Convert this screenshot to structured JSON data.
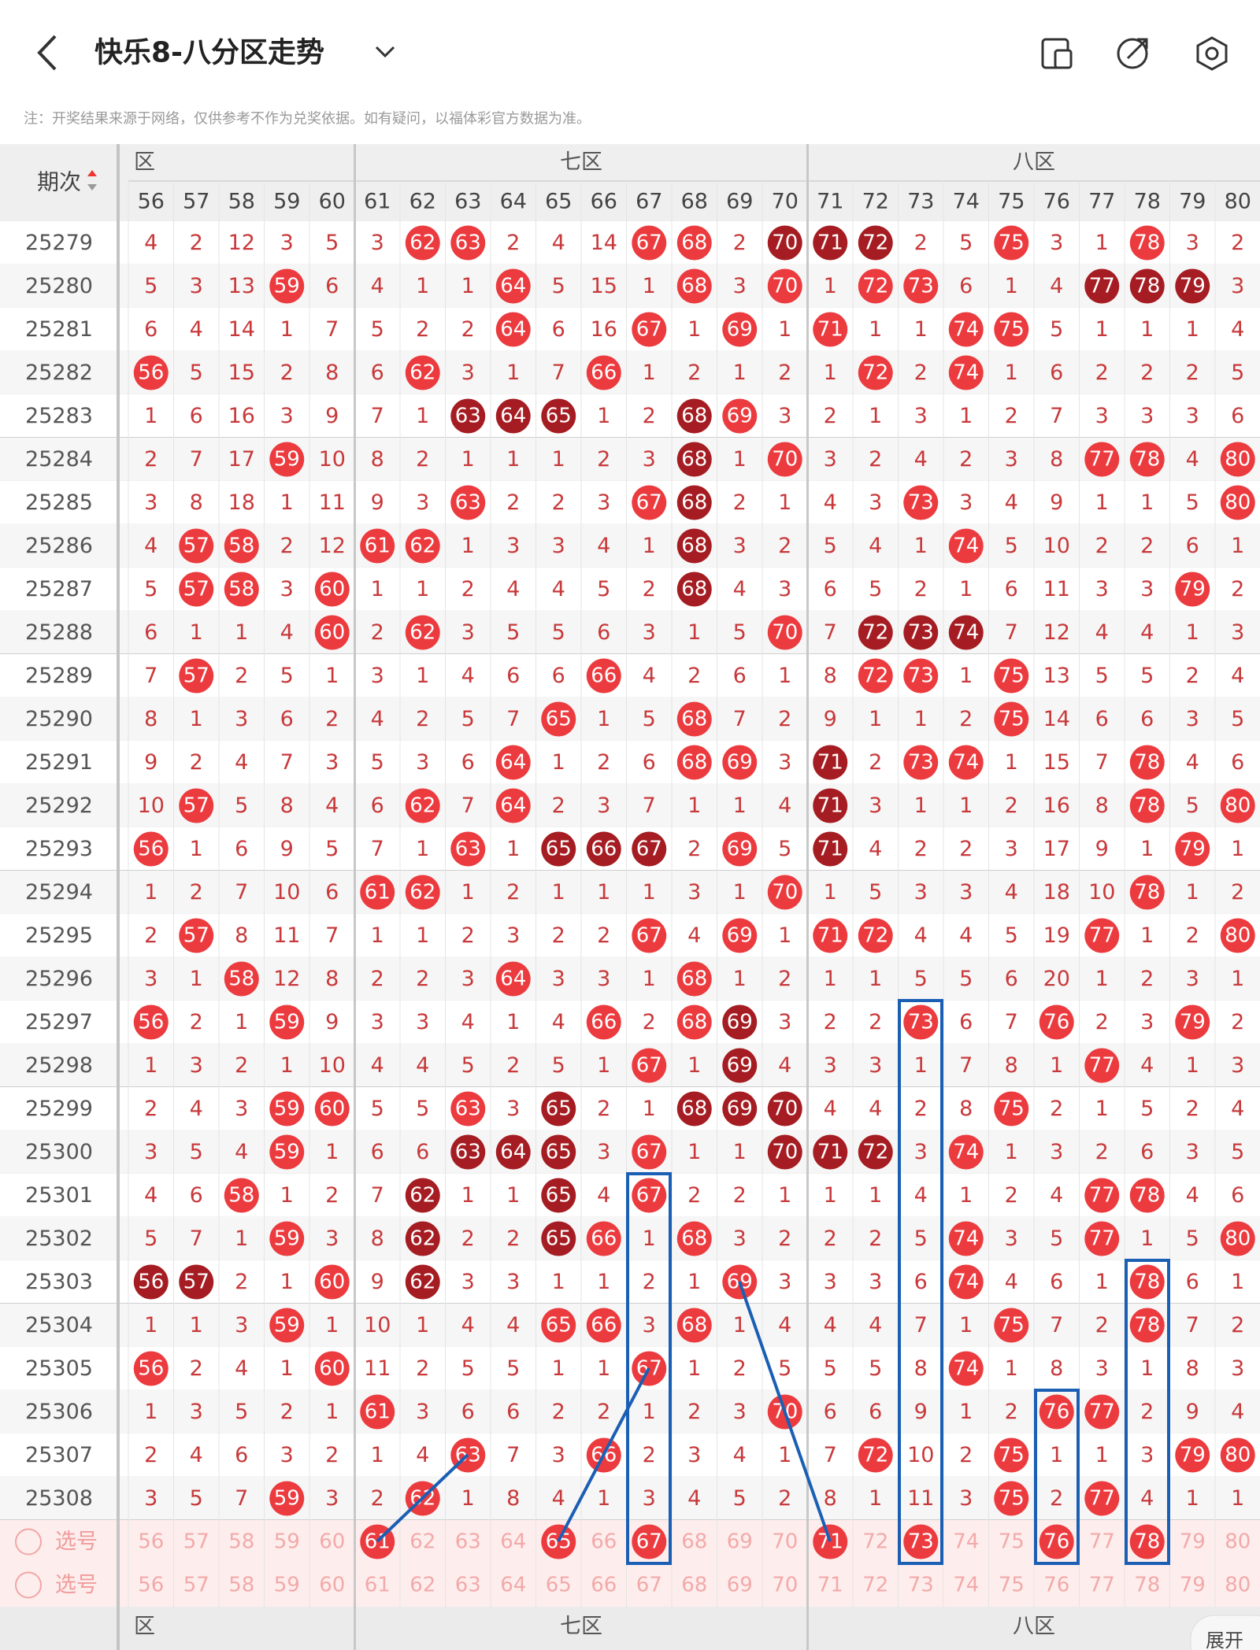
{
  "header": {
    "title": "快乐8-八分区走势",
    "note": "注：开奖结果来源于网络，仅供参考不作为兑奖依据。如有疑问，以福体彩官方数据为准。"
  },
  "table": {
    "corner": "期次",
    "zones": [
      "区",
      "七区",
      "八区"
    ],
    "columns": [
      56,
      57,
      58,
      59,
      60,
      61,
      62,
      63,
      64,
      65,
      66,
      67,
      68,
      69,
      70,
      71,
      72,
      73,
      74,
      75,
      76,
      77,
      78,
      79,
      80
    ],
    "rows": [
      {
        "issue": "25279",
        "values": [
          4,
          2,
          12,
          3,
          5,
          3,
          62,
          63,
          2,
          4,
          14,
          67,
          68,
          2,
          70,
          71,
          72,
          2,
          5,
          75,
          3,
          1,
          78,
          3,
          2
        ],
        "dark": [
          70,
          71,
          72
        ]
      },
      {
        "issue": "25280",
        "values": [
          5,
          3,
          13,
          59,
          6,
          4,
          1,
          1,
          64,
          5,
          15,
          1,
          68,
          3,
          70,
          1,
          72,
          73,
          6,
          1,
          4,
          77,
          78,
          79,
          3
        ],
        "dark": [
          77,
          78,
          79
        ]
      },
      {
        "issue": "25281",
        "values": [
          6,
          4,
          14,
          1,
          7,
          5,
          2,
          2,
          64,
          6,
          16,
          67,
          1,
          69,
          1,
          71,
          1,
          1,
          74,
          75,
          5,
          1,
          1,
          1,
          4
        ],
        "dark": []
      },
      {
        "issue": "25282",
        "values": [
          56,
          5,
          15,
          2,
          8,
          6,
          62,
          3,
          1,
          7,
          66,
          1,
          2,
          1,
          2,
          1,
          72,
          2,
          74,
          1,
          6,
          2,
          2,
          2,
          5
        ],
        "dark": []
      },
      {
        "issue": "25283",
        "values": [
          1,
          6,
          16,
          3,
          9,
          7,
          1,
          63,
          64,
          65,
          1,
          2,
          68,
          69,
          3,
          2,
          1,
          3,
          1,
          2,
          7,
          3,
          3,
          3,
          6
        ],
        "dark": [
          63,
          64,
          65,
          68
        ]
      },
      {
        "issue": "25284",
        "values": [
          2,
          7,
          17,
          59,
          10,
          8,
          2,
          1,
          1,
          1,
          2,
          3,
          68,
          1,
          70,
          3,
          2,
          4,
          2,
          3,
          8,
          77,
          78,
          4,
          80
        ],
        "dark": [
          68
        ]
      },
      {
        "issue": "25285",
        "values": [
          3,
          8,
          18,
          1,
          11,
          9,
          3,
          63,
          2,
          2,
          3,
          67,
          68,
          2,
          1,
          4,
          3,
          73,
          3,
          4,
          9,
          1,
          1,
          5,
          80
        ],
        "dark": [
          68
        ]
      },
      {
        "issue": "25286",
        "values": [
          4,
          57,
          58,
          2,
          12,
          61,
          62,
          1,
          3,
          3,
          4,
          1,
          68,
          3,
          2,
          5,
          4,
          1,
          74,
          5,
          10,
          2,
          2,
          6,
          1
        ],
        "dark": [
          68
        ]
      },
      {
        "issue": "25287",
        "values": [
          5,
          57,
          58,
          3,
          60,
          1,
          1,
          2,
          4,
          4,
          5,
          2,
          68,
          4,
          3,
          6,
          5,
          2,
          1,
          6,
          11,
          3,
          3,
          79,
          2
        ],
        "dark": [
          68
        ]
      },
      {
        "issue": "25288",
        "values": [
          6,
          1,
          1,
          4,
          60,
          2,
          62,
          3,
          5,
          5,
          6,
          3,
          1,
          5,
          70,
          7,
          72,
          73,
          74,
          7,
          12,
          4,
          4,
          1,
          3
        ],
        "dark": [
          72,
          73,
          74
        ]
      },
      {
        "issue": "25289",
        "values": [
          7,
          57,
          2,
          5,
          1,
          3,
          1,
          4,
          6,
          6,
          66,
          4,
          2,
          6,
          1,
          8,
          72,
          73,
          1,
          75,
          13,
          5,
          5,
          2,
          4
        ],
        "dark": []
      },
      {
        "issue": "25290",
        "values": [
          8,
          1,
          3,
          6,
          2,
          4,
          2,
          5,
          7,
          65,
          1,
          5,
          68,
          7,
          2,
          9,
          1,
          1,
          2,
          75,
          14,
          6,
          6,
          3,
          5
        ],
        "dark": []
      },
      {
        "issue": "25291",
        "values": [
          9,
          2,
          4,
          7,
          3,
          5,
          3,
          6,
          64,
          1,
          2,
          6,
          68,
          69,
          3,
          71,
          2,
          73,
          74,
          1,
          15,
          7,
          78,
          4,
          6
        ],
        "dark": [
          71
        ]
      },
      {
        "issue": "25292",
        "values": [
          10,
          57,
          5,
          8,
          4,
          6,
          62,
          7,
          64,
          2,
          3,
          7,
          1,
          1,
          4,
          71,
          3,
          1,
          1,
          2,
          16,
          8,
          78,
          5,
          80
        ],
        "dark": [
          71
        ]
      },
      {
        "issue": "25293",
        "values": [
          56,
          1,
          6,
          9,
          5,
          7,
          1,
          63,
          1,
          65,
          66,
          67,
          2,
          69,
          5,
          71,
          4,
          2,
          2,
          3,
          17,
          9,
          1,
          79,
          1
        ],
        "dark": [
          65,
          66,
          67,
          71
        ]
      },
      {
        "issue": "25294",
        "values": [
          1,
          2,
          7,
          10,
          6,
          61,
          62,
          1,
          2,
          1,
          1,
          1,
          3,
          1,
          70,
          1,
          5,
          3,
          3,
          4,
          18,
          10,
          78,
          1,
          2
        ],
        "dark": []
      },
      {
        "issue": "25295",
        "values": [
          2,
          57,
          8,
          11,
          7,
          1,
          1,
          2,
          3,
          2,
          2,
          67,
          4,
          69,
          1,
          71,
          72,
          4,
          4,
          5,
          19,
          77,
          1,
          2,
          80
        ],
        "dark": []
      },
      {
        "issue": "25296",
        "values": [
          3,
          1,
          58,
          12,
          8,
          2,
          2,
          3,
          64,
          3,
          3,
          1,
          68,
          1,
          2,
          1,
          1,
          5,
          5,
          6,
          20,
          1,
          2,
          3,
          1
        ],
        "dark": []
      },
      {
        "issue": "25297",
        "values": [
          56,
          2,
          1,
          59,
          9,
          3,
          3,
          4,
          1,
          4,
          66,
          2,
          68,
          69,
          3,
          2,
          2,
          73,
          6,
          7,
          76,
          2,
          3,
          79,
          2
        ],
        "dark": [
          69
        ]
      },
      {
        "issue": "25298",
        "values": [
          1,
          3,
          2,
          1,
          10,
          4,
          4,
          5,
          2,
          5,
          1,
          67,
          1,
          69,
          4,
          3,
          3,
          1,
          7,
          8,
          1,
          77,
          4,
          1,
          3
        ],
        "dark": [
          69
        ]
      },
      {
        "issue": "25299",
        "values": [
          2,
          4,
          3,
          59,
          60,
          5,
          5,
          63,
          3,
          65,
          2,
          1,
          68,
          69,
          70,
          4,
          4,
          2,
          8,
          75,
          2,
          1,
          5,
          2,
          4
        ],
        "dark": [
          65,
          68,
          69,
          70
        ]
      },
      {
        "issue": "25300",
        "values": [
          3,
          5,
          4,
          59,
          1,
          6,
          6,
          63,
          64,
          65,
          3,
          67,
          1,
          1,
          70,
          71,
          72,
          3,
          74,
          1,
          3,
          2,
          6,
          3,
          5
        ],
        "dark": [
          63,
          64,
          65,
          70,
          71,
          72
        ]
      },
      {
        "issue": "25301",
        "values": [
          4,
          6,
          58,
          1,
          2,
          7,
          62,
          1,
          1,
          65,
          4,
          67,
          2,
          2,
          1,
          1,
          1,
          4,
          1,
          2,
          4,
          77,
          78,
          4,
          6
        ],
        "dark": [
          62,
          65
        ]
      },
      {
        "issue": "25302",
        "values": [
          5,
          7,
          1,
          59,
          3,
          8,
          62,
          2,
          2,
          65,
          66,
          1,
          68,
          3,
          2,
          2,
          2,
          5,
          74,
          3,
          5,
          77,
          1,
          5,
          80
        ],
        "dark": [
          62,
          65
        ]
      },
      {
        "issue": "25303",
        "values": [
          56,
          57,
          2,
          1,
          60,
          9,
          62,
          3,
          3,
          1,
          1,
          2,
          1,
          69,
          3,
          3,
          3,
          6,
          74,
          4,
          6,
          1,
          78,
          6,
          1
        ],
        "dark": [
          56,
          57,
          62
        ]
      },
      {
        "issue": "25304",
        "values": [
          1,
          1,
          3,
          59,
          1,
          10,
          1,
          4,
          4,
          65,
          66,
          3,
          68,
          1,
          4,
          4,
          4,
          7,
          1,
          75,
          7,
          2,
          78,
          7,
          2
        ],
        "dark": []
      },
      {
        "issue": "25305",
        "values": [
          56,
          2,
          4,
          1,
          60,
          11,
          2,
          5,
          5,
          1,
          1,
          67,
          1,
          2,
          5,
          5,
          5,
          8,
          74,
          1,
          8,
          3,
          1,
          8,
          3
        ],
        "dark": []
      },
      {
        "issue": "25306",
        "values": [
          1,
          3,
          5,
          2,
          1,
          61,
          3,
          6,
          6,
          2,
          2,
          1,
          2,
          3,
          70,
          6,
          6,
          9,
          1,
          2,
          76,
          77,
          2,
          9,
          4
        ],
        "dark": []
      },
      {
        "issue": "25307",
        "values": [
          2,
          4,
          6,
          3,
          2,
          1,
          4,
          63,
          7,
          3,
          66,
          2,
          3,
          4,
          1,
          7,
          72,
          10,
          2,
          75,
          1,
          1,
          3,
          79,
          80
        ],
        "dark": []
      },
      {
        "issue": "25308",
        "values": [
          3,
          5,
          7,
          59,
          3,
          2,
          62,
          1,
          8,
          4,
          1,
          3,
          4,
          5,
          2,
          8,
          1,
          11,
          3,
          75,
          2,
          77,
          4,
          1,
          1
        ],
        "dark": []
      }
    ],
    "select_rows": [
      {
        "label": "选号",
        "picked": [
          61,
          65,
          67,
          71,
          73,
          76,
          78
        ]
      },
      {
        "label": "选号",
        "picked": []
      }
    ],
    "expand": "展开"
  }
}
